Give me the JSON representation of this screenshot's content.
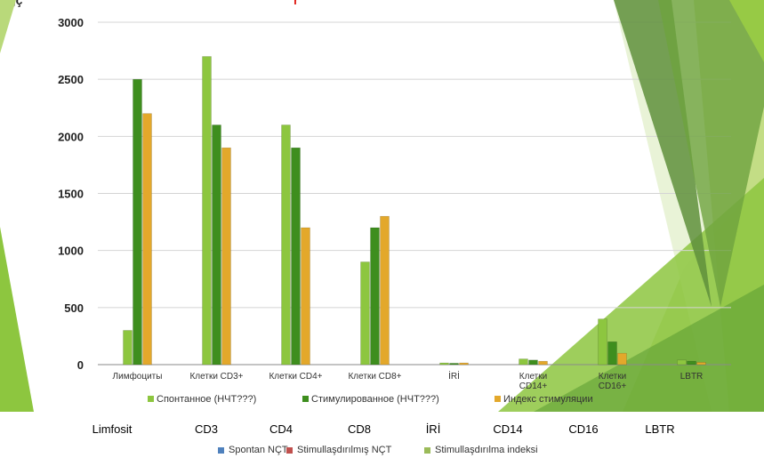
{
  "header_fragments": {
    "left": "ç,ç",
    "right": "r"
  },
  "chart_data": {
    "type": "bar",
    "categories": [
      "Лимфоциты",
      "Клетки CD3+",
      "Клетки CD4+",
      "Клетки CD8+",
      "İRİ",
      "Клетки CD14+",
      "Клетки CD16+",
      "LBTR"
    ],
    "category_label_lines": [
      [
        "Лимфоциты"
      ],
      [
        "Клетки CD3+"
      ],
      [
        "Клетки CD4+"
      ],
      [
        "Клетки CD8+"
      ],
      [
        "İRİ"
      ],
      [
        "Клетки",
        "CD14+"
      ],
      [
        "Клетки",
        "CD16+"
      ],
      [
        "LBTR"
      ]
    ],
    "series": [
      {
        "name": "Спонтанное (НЧТ???)",
        "values": [
          300,
          2700,
          2100,
          900,
          15,
          50,
          400,
          40
        ],
        "color": "#8dc63f"
      },
      {
        "name": "Стимулированное (НЧТ???)",
        "values": [
          2500,
          2100,
          1900,
          1200,
          12,
          40,
          200,
          30
        ],
        "color": "#3e8e1e"
      },
      {
        "name": "Индекс стимуляции",
        "values": [
          2200,
          1900,
          1200,
          1300,
          15,
          30,
          100,
          20
        ],
        "color": "#e3a82b"
      }
    ],
    "ylim": [
      0,
      3000
    ],
    "yticks": [
      0,
      500,
      1000,
      1500,
      2000,
      2500,
      3000
    ],
    "grid": true,
    "legend_position": "bottom"
  },
  "bottom_axis": {
    "categories": [
      "Limfosit",
      "CD3",
      "CD4",
      "CD8",
      "İRİ",
      "CD14",
      "CD16",
      "LBTR"
    ],
    "legend": [
      {
        "name": "Spontan NÇT",
        "color": "#4f81bd"
      },
      {
        "name": "Stimullaşdırılmış NÇT",
        "color": "#c0504d"
      },
      {
        "name": "Stimullaşdırılma indeksi",
        "color": "#9bbb59"
      }
    ]
  }
}
